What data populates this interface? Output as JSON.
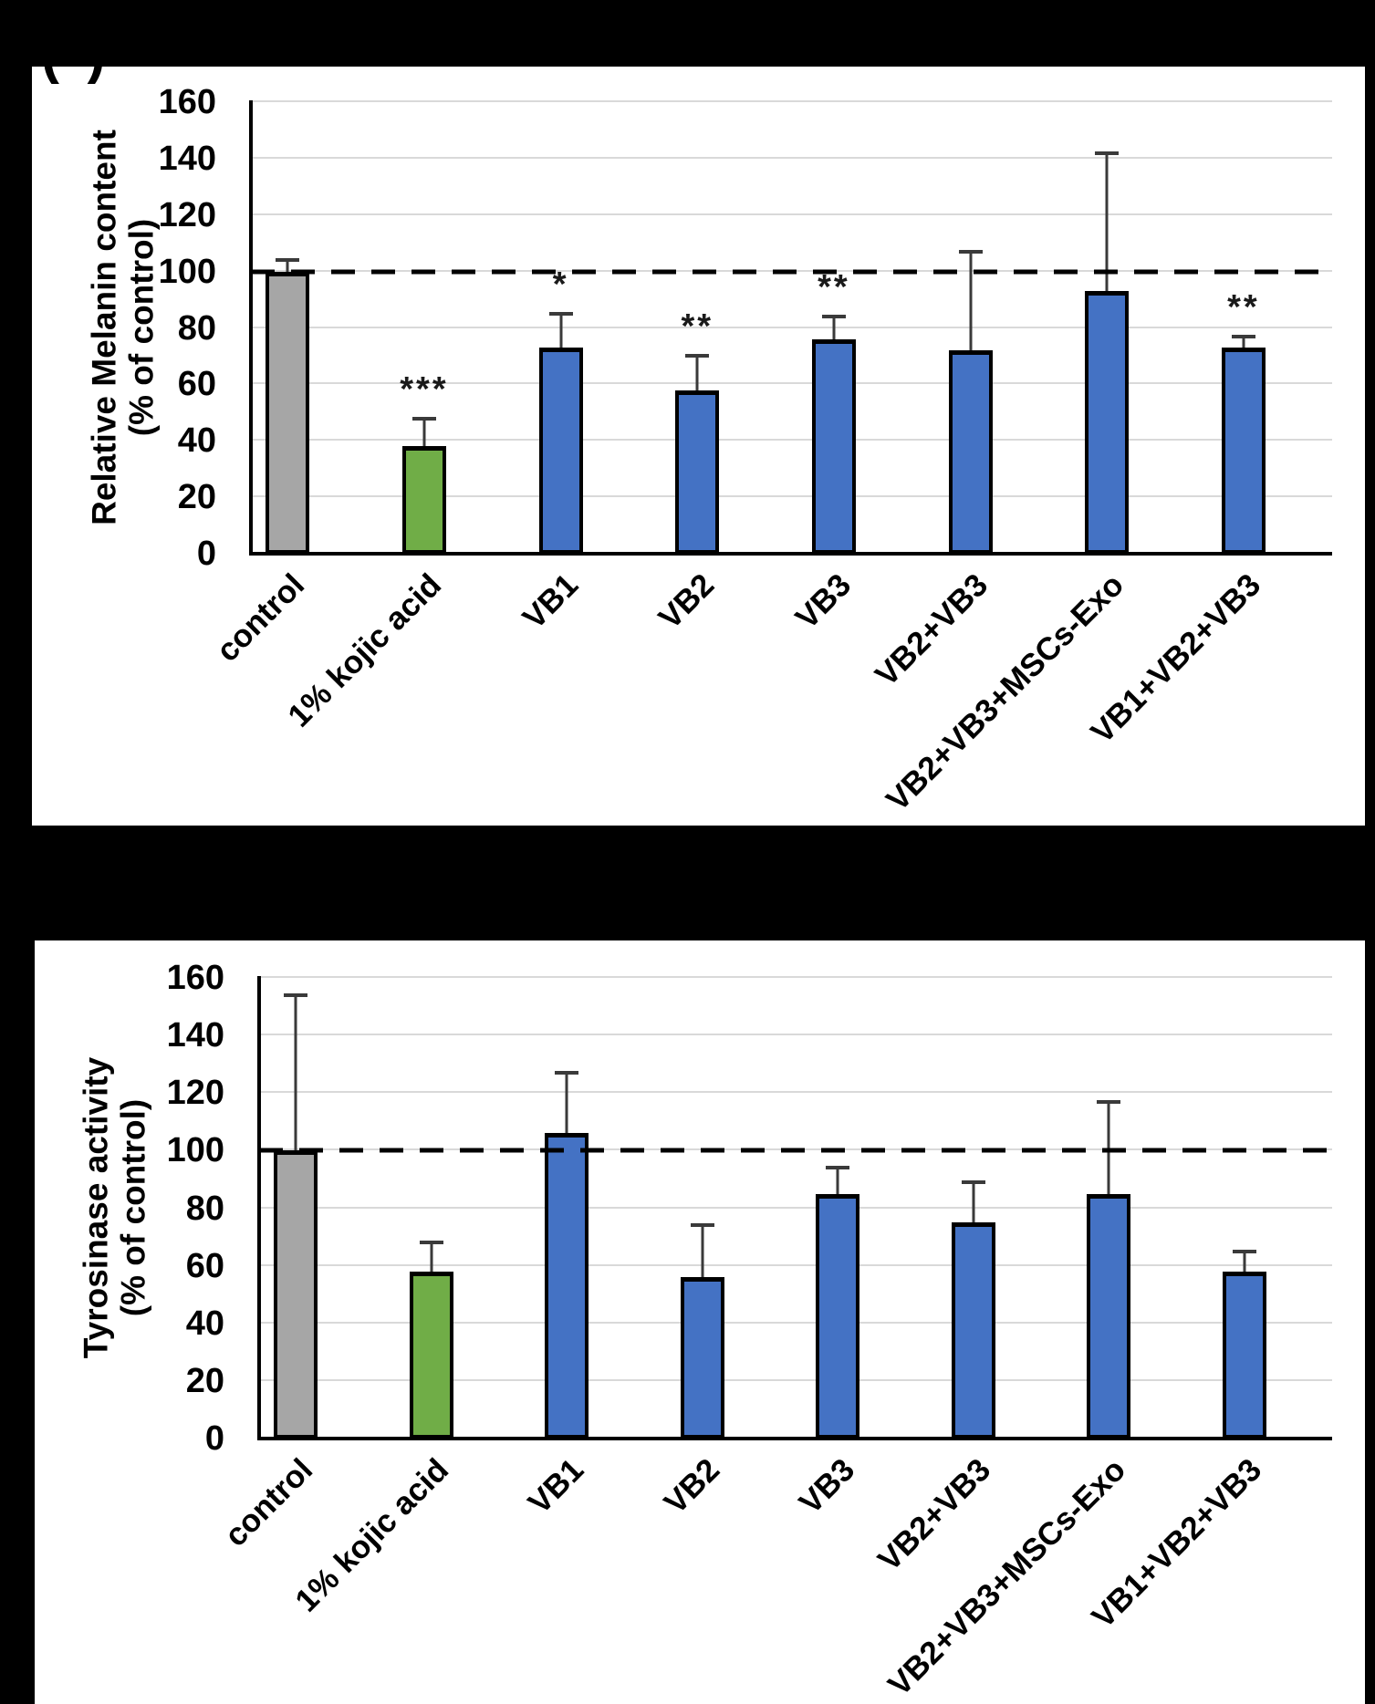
{
  "panel_label_partial": "( )",
  "colors": {
    "background": "#000000",
    "panel": "#ffffff",
    "control_bar": "#a6a6a6",
    "kojic_bar": "#70ad47",
    "treatment_bar": "#4472c4",
    "bar_outline": "#000000",
    "gridline": "#d9d9d9",
    "error_bar": "#3a3a3a",
    "reference_line": "#000000"
  },
  "chart_data": [
    {
      "id": "melanin",
      "type": "bar",
      "title": "",
      "ylabel_line1": "Relative Melanin content",
      "ylabel_line2": "(% of control)",
      "xlabel": "",
      "ylim": [
        0,
        160
      ],
      "yticks": [
        0,
        20,
        40,
        60,
        80,
        100,
        120,
        140,
        160
      ],
      "grid": true,
      "reference_line": {
        "value": 100,
        "style": "dashed"
      },
      "categories": [
        "control",
        "1% kojic acid",
        "VB1",
        "VB2",
        "VB3",
        "VB2+VB3",
        "VB2+VB3+MSCs-Exo",
        "VB1+VB2+VB3"
      ],
      "values": [
        100,
        38,
        73,
        58,
        76,
        72,
        93,
        73
      ],
      "errors_plus": [
        4,
        10,
        12,
        12,
        8,
        35,
        49,
        4
      ],
      "significance": [
        "",
        "***",
        "*",
        "**",
        "**",
        "",
        "",
        "**"
      ],
      "bar_colors": [
        "#a6a6a6",
        "#70ad47",
        "#4472c4",
        "#4472c4",
        "#4472c4",
        "#4472c4",
        "#4472c4",
        "#4472c4"
      ]
    },
    {
      "id": "tyrosinase",
      "type": "bar",
      "title": "",
      "ylabel_line1": "Tyrosinase activity",
      "ylabel_line2": "(% of control)",
      "xlabel": "",
      "ylim": [
        0,
        160
      ],
      "yticks": [
        0,
        20,
        40,
        60,
        80,
        100,
        120,
        140,
        160
      ],
      "grid": true,
      "reference_line": {
        "value": 100,
        "style": "dashed"
      },
      "categories": [
        "control",
        "1% kojic acid",
        "VB1",
        "VB2",
        "VB3",
        "VB2+VB3",
        "VB2+VB3+MSCs-Exo",
        "VB1+VB2+VB3"
      ],
      "values": [
        100,
        58,
        106,
        56,
        85,
        75,
        85,
        58
      ],
      "errors_plus": [
        54,
        10,
        21,
        18,
        9,
        14,
        32,
        7
      ],
      "significance": [
        "",
        "",
        "",
        "",
        "",
        "",
        "",
        ""
      ],
      "bar_colors": [
        "#a6a6a6",
        "#70ad47",
        "#4472c4",
        "#4472c4",
        "#4472c4",
        "#4472c4",
        "#4472c4",
        "#4472c4"
      ]
    }
  ]
}
